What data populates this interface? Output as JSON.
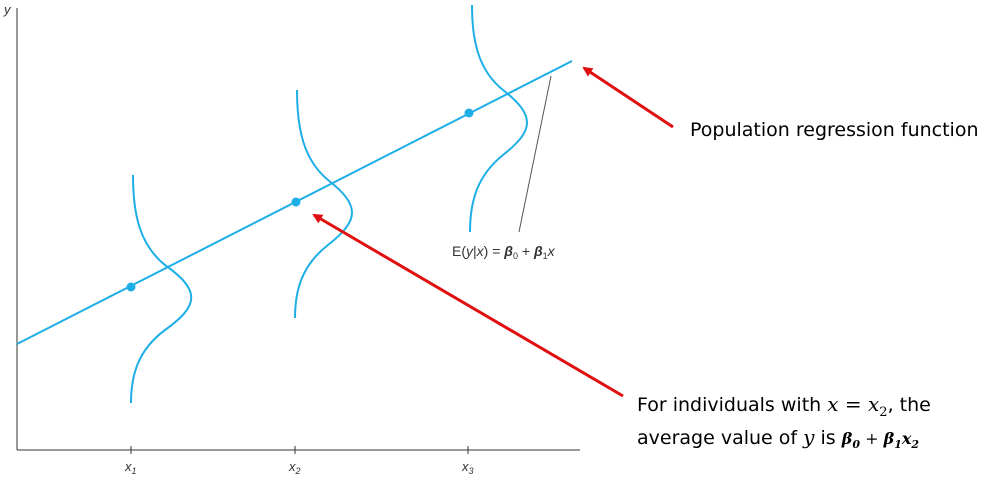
{
  "axes": {
    "y_label": "y",
    "ticks": [
      {
        "base": "x",
        "sub": "1"
      },
      {
        "base": "x",
        "sub": "2"
      },
      {
        "base": "x",
        "sub": "3"
      }
    ]
  },
  "equation": {
    "text_left": "E(",
    "y": "y",
    "bar": "|",
    "x": "x",
    "text_right": ") = ",
    "beta0": "β",
    "beta0_sub": "0",
    "plus": " + ",
    "beta1": "β",
    "beta1_sub": "1",
    "x2": "x"
  },
  "annotations": {
    "population": "Population regression function",
    "line1_prefix": "For individuals with",
    "line1_math_left": "x",
    "line1_math_eq": " = ",
    "line1_math_right": "x",
    "line1_math_sub": "2",
    "line1_suffix": ", the",
    "line2_prefix": "average value of",
    "line2_math": "y",
    "line2_is": "is",
    "line2_beta0": "β",
    "line2_beta0_sub": "0",
    "line2_plus": " + ",
    "line2_beta1": "β",
    "line2_beta1_sub": "1",
    "line2_x": "x",
    "line2_x_sub": "2"
  },
  "colors": {
    "regression": "#1eaee6",
    "arrow": "#e01010",
    "axis": "#333333",
    "leader": "#555555"
  }
}
